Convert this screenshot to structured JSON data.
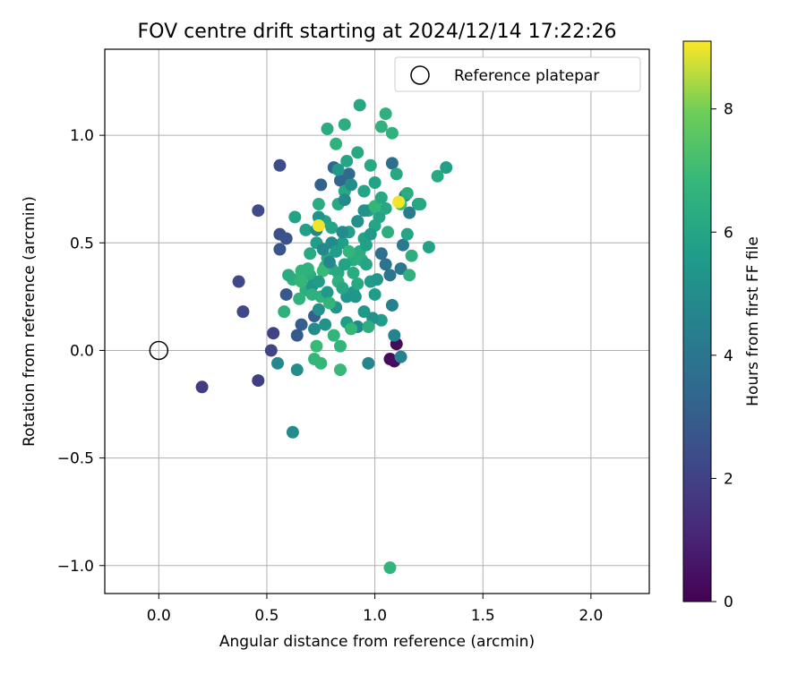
{
  "chart_data": {
    "type": "scatter",
    "title": "FOV centre drift starting at 2024/12/14 17:22:26",
    "xlabel": "Angular distance from reference (arcmin)",
    "ylabel": "Rotation from reference (arcmin)",
    "xlim": [
      -0.25,
      2.27
    ],
    "ylim": [
      -1.13,
      1.4
    ],
    "xticks": [
      0.0,
      0.5,
      1.0,
      1.5,
      2.0
    ],
    "xtick_labels": [
      "0.0",
      "0.5",
      "1.0",
      "1.5",
      "2.0"
    ],
    "yticks": [
      -1.0,
      -0.5,
      0.0,
      0.5,
      1.0
    ],
    "ytick_labels": [
      "−1.0",
      "−0.5",
      "0.0",
      "0.5",
      "1.0"
    ],
    "grid": true,
    "legend": {
      "placement": "top-right",
      "label": "Reference platepar"
    },
    "reference_point": {
      "x": 0.0,
      "y": 0.0
    },
    "colorbar": {
      "label": "Hours from first FF file",
      "colormap": "viridis",
      "range": [
        0,
        9.1
      ],
      "ticks": [
        0,
        2,
        4,
        6,
        8
      ],
      "tick_labels": [
        "0",
        "2",
        "4",
        "6",
        "8"
      ]
    },
    "points": [
      [
        1.1,
        0.03,
        0.3
      ],
      [
        1.07,
        -0.04,
        0.3
      ],
      [
        1.09,
        -0.05,
        0.4
      ],
      [
        0.2,
        -0.17,
        1.8
      ],
      [
        0.46,
        -0.14,
        1.9
      ],
      [
        0.53,
        0.08,
        2.0
      ],
      [
        0.52,
        0.0,
        2.1
      ],
      [
        0.37,
        0.32,
        2.2
      ],
      [
        0.39,
        0.18,
        2.2
      ],
      [
        0.46,
        0.65,
        2.3
      ],
      [
        0.56,
        0.86,
        2.4
      ],
      [
        0.56,
        0.54,
        2.5
      ],
      [
        0.59,
        0.52,
        2.6
      ],
      [
        0.56,
        0.47,
        2.7
      ],
      [
        0.59,
        0.26,
        2.8
      ],
      [
        0.64,
        0.07,
        2.9
      ],
      [
        0.66,
        0.12,
        3.0
      ],
      [
        0.72,
        0.16,
        3.1
      ],
      [
        0.75,
        0.77,
        3.2
      ],
      [
        0.81,
        0.85,
        3.3
      ],
      [
        0.84,
        0.79,
        3.4
      ],
      [
        0.88,
        0.82,
        3.5
      ],
      [
        0.95,
        0.74,
        3.6
      ],
      [
        1.08,
        0.87,
        3.7
      ],
      [
        1.03,
        0.45,
        3.8
      ],
      [
        1.05,
        0.4,
        3.9
      ],
      [
        1.07,
        0.35,
        4.0
      ],
      [
        1.12,
        0.38,
        4.1
      ],
      [
        1.13,
        0.49,
        4.2
      ],
      [
        1.16,
        0.64,
        4.3
      ],
      [
        1.14,
        0.72,
        4.4
      ],
      [
        1.08,
        0.21,
        4.5
      ],
      [
        1.12,
        -0.03,
        4.6
      ],
      [
        1.09,
        0.07,
        4.6
      ],
      [
        0.97,
        -0.06,
        4.7
      ],
      [
        0.92,
        0.11,
        4.8
      ],
      [
        0.55,
        -0.06,
        4.8
      ],
      [
        0.62,
        -0.38,
        4.9
      ],
      [
        0.64,
        -0.09,
        5.0
      ],
      [
        0.72,
        0.1,
        5.0
      ],
      [
        0.74,
        0.19,
        5.1
      ],
      [
        0.77,
        0.12,
        5.2
      ],
      [
        0.82,
        0.2,
        5.3
      ],
      [
        0.87,
        0.25,
        5.3
      ],
      [
        0.9,
        0.27,
        5.4
      ],
      [
        0.95,
        0.18,
        5.5
      ],
      [
        0.98,
        0.32,
        5.6
      ],
      [
        1.0,
        0.26,
        5.6
      ],
      [
        1.03,
        0.14,
        5.7
      ],
      [
        0.85,
        0.5,
        5.7
      ],
      [
        0.88,
        0.55,
        5.8
      ],
      [
        0.92,
        0.6,
        5.8
      ],
      [
        0.95,
        0.52,
        5.9
      ],
      [
        0.97,
        0.65,
        5.9
      ],
      [
        1.0,
        0.58,
        6.0
      ],
      [
        1.02,
        0.62,
        6.0
      ],
      [
        1.05,
        0.66,
        6.1
      ],
      [
        0.78,
        0.43,
        6.1
      ],
      [
        0.8,
        0.38,
        6.2
      ],
      [
        0.83,
        0.36,
        6.2
      ],
      [
        0.9,
        0.42,
        6.3
      ],
      [
        0.93,
        0.46,
        6.3
      ],
      [
        0.7,
        0.35,
        6.4
      ],
      [
        0.68,
        0.28,
        6.4
      ],
      [
        0.62,
        0.33,
        6.5
      ],
      [
        0.58,
        0.18,
        6.5
      ],
      [
        0.65,
        0.24,
        6.6
      ],
      [
        0.75,
        0.25,
        6.6
      ],
      [
        0.81,
        0.07,
        6.7
      ],
      [
        0.84,
        0.02,
        6.7
      ],
      [
        0.75,
        -0.06,
        6.8
      ],
      [
        0.72,
        -0.04,
        6.8
      ],
      [
        0.84,
        -0.09,
        6.9
      ],
      [
        0.73,
        0.02,
        6.9
      ],
      [
        0.95,
        0.74,
        6.0
      ],
      [
        0.92,
        0.92,
        6.2
      ],
      [
        0.86,
        1.05,
        6.4
      ],
      [
        0.93,
        1.14,
        6.1
      ],
      [
        0.78,
        1.03,
        6.3
      ],
      [
        1.05,
        1.1,
        6.5
      ],
      [
        1.03,
        1.04,
        6.6
      ],
      [
        0.98,
        0.86,
        6.2
      ],
      [
        1.1,
        0.82,
        6.1
      ],
      [
        1.15,
        0.73,
        6.3
      ],
      [
        1.2,
        0.68,
        6.0
      ],
      [
        1.29,
        0.81,
        6.2
      ],
      [
        1.33,
        0.85,
        5.8
      ],
      [
        1.25,
        0.48,
        5.9
      ],
      [
        1.17,
        0.44,
        6.4
      ],
      [
        1.16,
        0.35,
        6.5
      ],
      [
        1.08,
        1.01,
        6.6
      ],
      [
        1.07,
        -1.01,
        6.7
      ],
      [
        1.21,
        0.68,
        6.1
      ],
      [
        1.15,
        0.54,
        6.0
      ],
      [
        0.63,
        0.62,
        5.9
      ],
      [
        0.68,
        0.56,
        5.8
      ],
      [
        0.73,
        0.5,
        5.7
      ],
      [
        0.77,
        0.6,
        5.9
      ],
      [
        0.8,
        0.57,
        6.0
      ],
      [
        0.83,
        0.68,
        6.2
      ],
      [
        0.86,
        0.74,
        6.1
      ],
      [
        0.74,
        0.68,
        6.3
      ],
      [
        0.77,
        0.39,
        6.5
      ],
      [
        0.88,
        0.46,
        6.7
      ],
      [
        0.94,
        0.42,
        6.4
      ],
      [
        0.7,
        0.45,
        6.2
      ],
      [
        0.66,
        0.37,
        6.6
      ],
      [
        0.6,
        0.35,
        6.3
      ],
      [
        0.76,
        0.37,
        6.9
      ],
      [
        0.83,
        0.32,
        6.5
      ],
      [
        0.96,
        0.4,
        6.0
      ],
      [
        0.87,
        0.13,
        5.7
      ],
      [
        0.91,
        0.25,
        5.4
      ],
      [
        0.95,
        0.65,
        5.2
      ],
      [
        0.92,
        0.6,
        5.1
      ],
      [
        0.85,
        0.55,
        5.0
      ],
      [
        0.8,
        0.5,
        4.9
      ],
      [
        0.76,
        0.47,
        4.8
      ],
      [
        0.73,
        0.56,
        4.7
      ],
      [
        0.74,
        0.62,
        5.2
      ],
      [
        0.78,
        0.27,
        5.5
      ],
      [
        0.71,
        0.3,
        5.3
      ],
      [
        0.79,
        0.41,
        4.7
      ],
      [
        1.0,
        0.67,
        6.8
      ],
      [
        1.12,
        0.68,
        7.0
      ],
      [
        0.74,
        0.58,
        9.0
      ],
      [
        1.11,
        0.69,
        9.0
      ],
      [
        0.98,
        0.54,
        5.5
      ],
      [
        0.96,
        0.49,
        5.8
      ],
      [
        1.01,
        0.33,
        5.4
      ],
      [
        0.99,
        0.15,
        5.2
      ],
      [
        0.86,
        0.7,
        4.9
      ],
      [
        0.89,
        0.77,
        5.0
      ],
      [
        0.83,
        0.84,
        5.5
      ],
      [
        0.87,
        0.88,
        6.0
      ],
      [
        0.82,
        0.96,
        6.6
      ],
      [
        1.0,
        0.78,
        5.9
      ],
      [
        1.03,
        0.71,
        6.1
      ],
      [
        1.06,
        0.55,
        6.4
      ],
      [
        0.66,
        0.32,
        6.8
      ],
      [
        0.69,
        0.38,
        6.6
      ],
      [
        0.71,
        0.26,
        6.5
      ],
      [
        0.89,
        0.1,
        6.8
      ],
      [
        0.97,
        0.11,
        6.4
      ],
      [
        0.92,
        0.31,
        6.2
      ],
      [
        0.85,
        0.29,
        6.1
      ],
      [
        0.79,
        0.22,
        6.7
      ],
      [
        0.74,
        0.32,
        5.6
      ],
      [
        0.82,
        0.46,
        5.7
      ],
      [
        0.86,
        0.4,
        5.9
      ],
      [
        0.9,
        0.36,
        6.3
      ]
    ]
  }
}
